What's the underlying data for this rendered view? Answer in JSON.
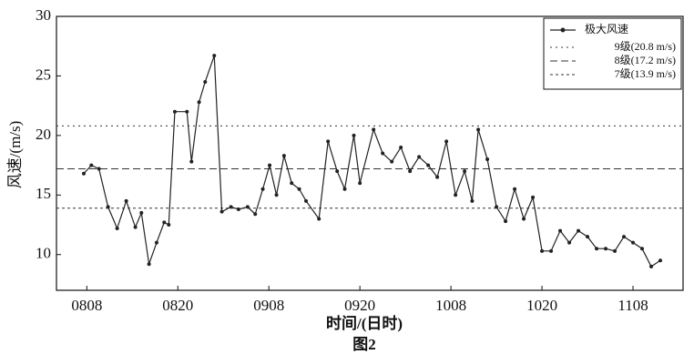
{
  "chart_data": {
    "type": "line",
    "title": "图2",
    "x_label": "时间/(日时)",
    "y_label": "风速/(m/s)",
    "xlim": [
      -4,
      78.6
    ],
    "ylim": [
      7,
      30
    ],
    "xticks": [
      {
        "value": 0,
        "label": "0808"
      },
      {
        "value": 12,
        "label": "0820"
      },
      {
        "value": 24,
        "label": "0908"
      },
      {
        "value": 36,
        "label": "0920"
      },
      {
        "value": 48,
        "label": "1008"
      },
      {
        "value": 60,
        "label": "1020"
      },
      {
        "value": 72,
        "label": "1108"
      }
    ],
    "yticks": [
      10,
      15,
      20,
      25,
      30
    ],
    "legend": "top-right",
    "series": [
      {
        "name": "极大风速",
        "color": "#222222",
        "x": [
          -0.4,
          0.6,
          1.6,
          2.8,
          4,
          5.2,
          6.4,
          7.2,
          8.2,
          9.2,
          10.2,
          10.8,
          11.6,
          13.2,
          13.8,
          14.8,
          15.6,
          16.8,
          17.8,
          19,
          20,
          21.2,
          22.2,
          23.2,
          24.1,
          25,
          26,
          27,
          28,
          28.9,
          30.6,
          31.8,
          33,
          34,
          35.2,
          36,
          37.8,
          39,
          40.2,
          41.4,
          42.6,
          43.8,
          45,
          46.2,
          47.4,
          48.6,
          49.8,
          50.8,
          51.6,
          52.8,
          54,
          55.2,
          56.4,
          57.6,
          58.8,
          60,
          61.2,
          62.4,
          63.6,
          64.8,
          66,
          67.2,
          68.4,
          69.6,
          70.8,
          72,
          73.2,
          74.4,
          75.6
        ],
        "values": [
          16.8,
          17.5,
          17.2,
          14,
          12.2,
          14.5,
          12.3,
          13.5,
          9.2,
          11,
          12.7,
          12.5,
          22,
          22,
          17.8,
          22.8,
          24.5,
          26.7,
          13.6,
          14,
          13.8,
          14,
          13.4,
          15.5,
          17.5,
          15,
          18.3,
          16,
          15.5,
          14.5,
          13,
          19.5,
          17,
          15.5,
          20,
          16,
          20.5,
          18.5,
          17.8,
          19,
          17,
          18.2,
          17.5,
          16.5,
          19.5,
          15,
          17,
          14.5,
          20.5,
          18,
          14,
          12.8,
          15.5,
          13,
          14.8,
          10.3,
          10.3,
          12,
          11,
          12,
          11.5,
          10.5,
          10.5,
          10.3,
          11.5,
          11,
          10.5,
          9,
          9.5
        ]
      }
    ],
    "reference_lines": [
      {
        "name": "9级(20.8 m/s)",
        "value": 20.8,
        "dash": "2,4"
      },
      {
        "name": "8级(17.2 m/s)",
        "value": 17.2,
        "dash": "8,4"
      },
      {
        "name": "7级(13.9 m/s)",
        "value": 13.9,
        "dash": "3,3"
      }
    ]
  }
}
